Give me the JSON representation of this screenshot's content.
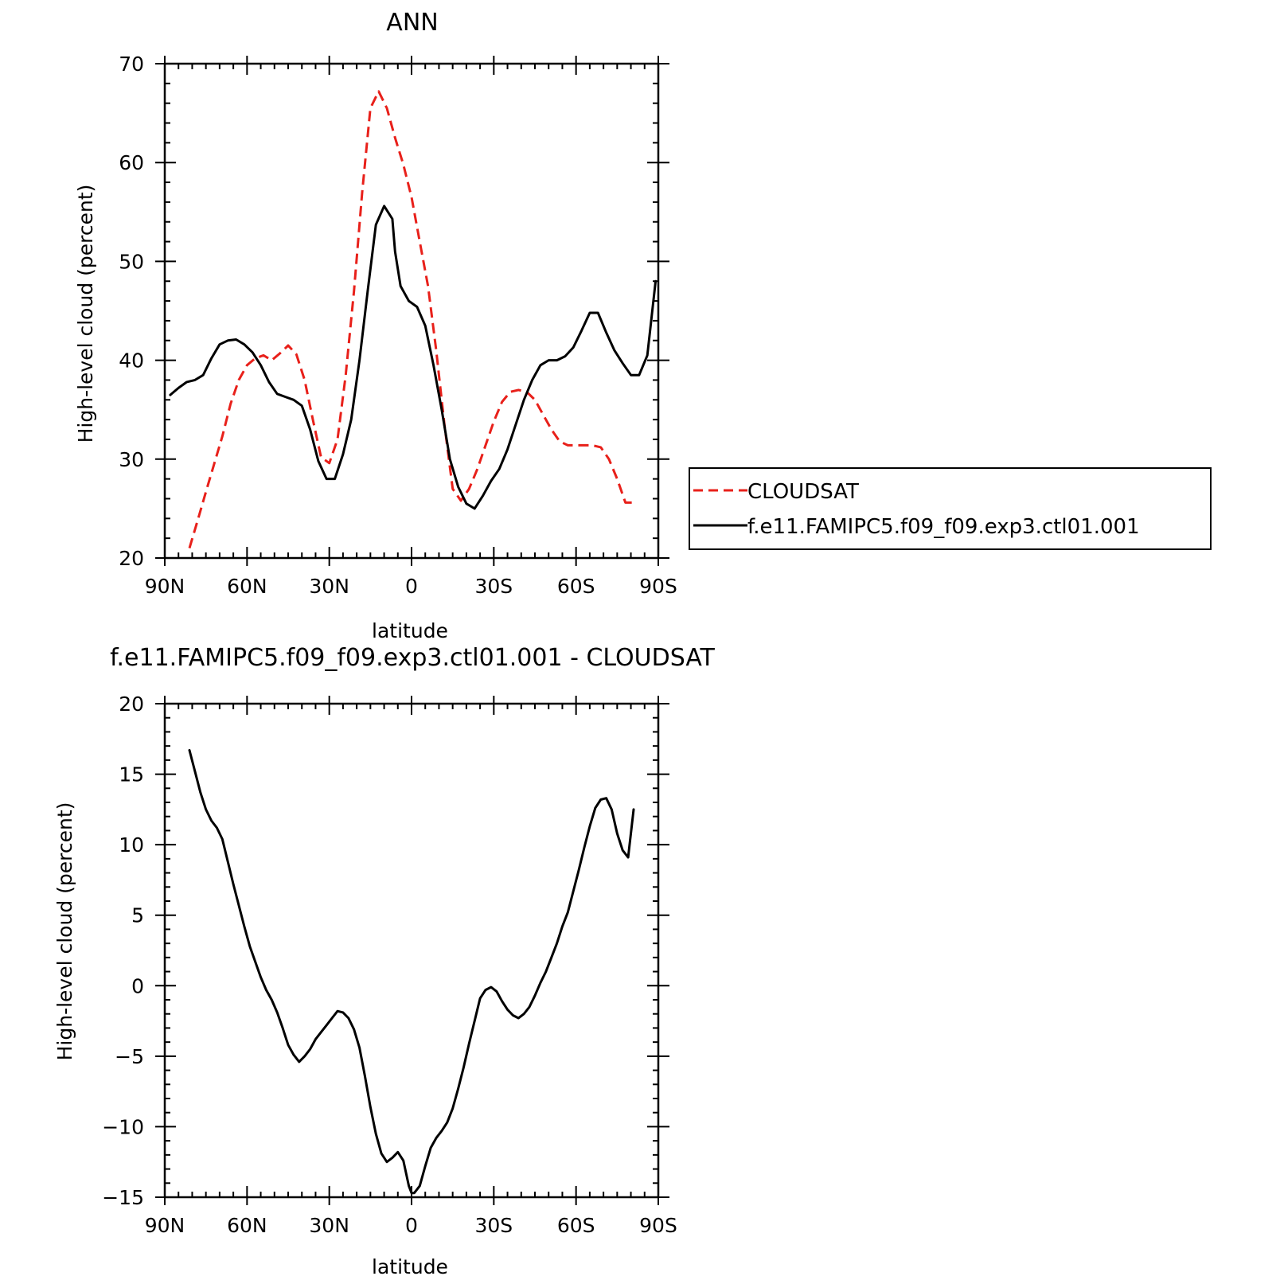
{
  "chart_data": [
    {
      "type": "line",
      "title": "ANN",
      "xlabel": "latitude",
      "ylabel": "High-level cloud (percent)",
      "xlim": [
        90,
        -90
      ],
      "ylim": [
        20,
        70
      ],
      "x_ticks": [
        {
          "value": 90,
          "label": "90N"
        },
        {
          "value": 60,
          "label": "60N"
        },
        {
          "value": 30,
          "label": "30N"
        },
        {
          "value": 0,
          "label": "0"
        },
        {
          "value": -30,
          "label": "30S"
        },
        {
          "value": -60,
          "label": "60S"
        },
        {
          "value": -90,
          "label": "90S"
        }
      ],
      "y_ticks": [
        {
          "value": 20,
          "label": "20"
        },
        {
          "value": 30,
          "label": "30"
        },
        {
          "value": 40,
          "label": "40"
        },
        {
          "value": 50,
          "label": "50"
        },
        {
          "value": 60,
          "label": "60"
        },
        {
          "value": 70,
          "label": "70"
        }
      ],
      "legend_position": "right",
      "series": [
        {
          "name": "CLOUDSAT",
          "color": "#e8201a",
          "dash": "dashed",
          "x": [
            81,
            78,
            75,
            72,
            69,
            66,
            63,
            60,
            57,
            54,
            51,
            48,
            45,
            42,
            39,
            36,
            33,
            30,
            27,
            24,
            21,
            18,
            15,
            12,
            9,
            6,
            3,
            0,
            -3,
            -6,
            -9,
            -12,
            -15,
            -18,
            -21,
            -24,
            -27,
            -30,
            -33,
            -36,
            -39,
            -42,
            -45,
            -48,
            -51,
            -54,
            -57,
            -60,
            -63,
            -66,
            -69,
            -72,
            -75,
            -78,
            -81
          ],
          "y": [
            21.0,
            23.8,
            26.7,
            29.5,
            32.3,
            35.6,
            38.0,
            39.5,
            40.2,
            40.5,
            40.0,
            40.7,
            41.5,
            40.6,
            38.0,
            34.0,
            30.2,
            29.6,
            32.0,
            38.5,
            47.0,
            57.0,
            65.5,
            67.2,
            65.5,
            62.5,
            59.8,
            56.5,
            52.0,
            47.5,
            41.0,
            33.5,
            27.0,
            25.8,
            27.0,
            29.0,
            31.4,
            33.8,
            35.8,
            36.8,
            37.0,
            36.8,
            36.0,
            34.5,
            33.0,
            31.8,
            31.4,
            31.4,
            31.4,
            31.4,
            31.2,
            30.0,
            28.0,
            25.6,
            25.6
          ]
        },
        {
          "name": "f.e11.FAMIPC5.f09_f09.exp3.ctl01.001",
          "color": "#000000",
          "dash": "solid",
          "x": [
            88,
            85,
            82,
            79,
            76,
            73,
            70,
            67,
            64,
            61,
            58,
            55,
            52,
            49,
            46,
            43,
            40,
            37,
            34,
            31,
            28,
            25,
            22,
            19,
            16,
            13,
            10,
            7,
            6,
            4,
            1,
            -2,
            -5,
            -8,
            -11,
            -14,
            -17,
            -20,
            -23,
            -26,
            -29,
            -32,
            -35,
            -38,
            -41,
            -44,
            -47,
            -50,
            -53,
            -56,
            -59,
            -62,
            -65,
            -68,
            -71,
            -74,
            -77,
            -80,
            -83,
            -86,
            -89
          ],
          "y": [
            36.5,
            37.2,
            37.8,
            38.0,
            38.5,
            40.2,
            41.6,
            42.0,
            42.1,
            41.6,
            40.8,
            39.5,
            37.8,
            36.6,
            36.3,
            36.0,
            35.4,
            33.0,
            29.8,
            28.0,
            28.0,
            30.5,
            34.0,
            40.0,
            47.0,
            53.7,
            55.6,
            54.3,
            51.0,
            47.5,
            46.0,
            45.4,
            43.5,
            39.5,
            35.0,
            30.0,
            27.2,
            25.5,
            25.0,
            26.3,
            27.8,
            29.0,
            31.0,
            33.5,
            36.0,
            38.0,
            39.5,
            40.0,
            40.0,
            40.4,
            41.3,
            43.0,
            44.8,
            44.8,
            42.8,
            41.0,
            39.7,
            38.5,
            38.5,
            40.5,
            48.0
          ]
        }
      ]
    },
    {
      "type": "line",
      "title": "f.e11.FAMIPC5.f09_f09.exp3.ctl01.001 - CLOUDSAT",
      "xlabel": "latitude",
      "ylabel": "High-level cloud (percent)",
      "xlim": [
        90,
        -90
      ],
      "ylim": [
        -15,
        20
      ],
      "x_ticks": [
        {
          "value": 90,
          "label": "90N"
        },
        {
          "value": 60,
          "label": "60N"
        },
        {
          "value": 30,
          "label": "30N"
        },
        {
          "value": 0,
          "label": "0"
        },
        {
          "value": -30,
          "label": "30S"
        },
        {
          "value": -60,
          "label": "60S"
        },
        {
          "value": -90,
          "label": "90S"
        }
      ],
      "y_ticks": [
        {
          "value": -15,
          "label": "−15"
        },
        {
          "value": -10,
          "label": "−10"
        },
        {
          "value": -5,
          "label": "−5"
        },
        {
          "value": 0,
          "label": "0"
        },
        {
          "value": 5,
          "label": "5"
        },
        {
          "value": 10,
          "label": "10"
        },
        {
          "value": 15,
          "label": "15"
        },
        {
          "value": 20,
          "label": "20"
        }
      ],
      "series": [
        {
          "color": "#000000",
          "dash": "solid",
          "x": [
            81,
            79,
            77,
            75,
            73,
            71,
            69,
            67,
            65,
            63,
            61,
            59,
            57,
            55,
            53,
            51,
            49,
            47,
            45,
            43,
            41,
            39,
            37,
            35,
            33,
            31,
            29,
            27,
            25,
            23,
            21,
            19,
            17,
            15,
            13,
            11,
            9,
            7,
            5,
            3,
            1,
            0,
            -1,
            -3,
            -5,
            -7,
            -9,
            -11,
            -13,
            -15,
            -17,
            -19,
            -21,
            -23,
            -25,
            -27,
            -29,
            -31,
            -33,
            -35,
            -37,
            -39,
            -41,
            -43,
            -45,
            -47,
            -49,
            -51,
            -53,
            -55,
            -57,
            -59,
            -61,
            -63,
            -65,
            -67,
            -69,
            -71,
            -73,
            -75,
            -77,
            -79,
            -81
          ],
          "y": [
            16.7,
            15.2,
            13.7,
            12.5,
            11.7,
            11.2,
            10.4,
            8.8,
            7.2,
            5.7,
            4.2,
            2.8,
            1.7,
            0.6,
            -0.3,
            -1.0,
            -1.9,
            -3.0,
            -4.2,
            -4.9,
            -5.4,
            -5.0,
            -4.5,
            -3.8,
            -3.3,
            -2.8,
            -2.3,
            -1.8,
            -1.9,
            -2.3,
            -3.1,
            -4.4,
            -6.4,
            -8.6,
            -10.5,
            -11.9,
            -12.5,
            -12.2,
            -11.8,
            -12.4,
            -14.2,
            -14.7,
            -14.7,
            -14.2,
            -12.8,
            -11.5,
            -10.8,
            -10.3,
            -9.7,
            -8.7,
            -7.3,
            -5.8,
            -4.1,
            -2.5,
            -0.9,
            -0.3,
            -0.1,
            -0.4,
            -1.1,
            -1.7,
            -2.1,
            -2.3,
            -2.0,
            -1.5,
            -0.7,
            0.2,
            1.0,
            2.0,
            3.0,
            4.2,
            5.2,
            6.7,
            8.2,
            9.8,
            11.3,
            12.6,
            13.2,
            13.3,
            12.5,
            10.8,
            9.6,
            9.1,
            12.5
          ]
        }
      ]
    }
  ]
}
